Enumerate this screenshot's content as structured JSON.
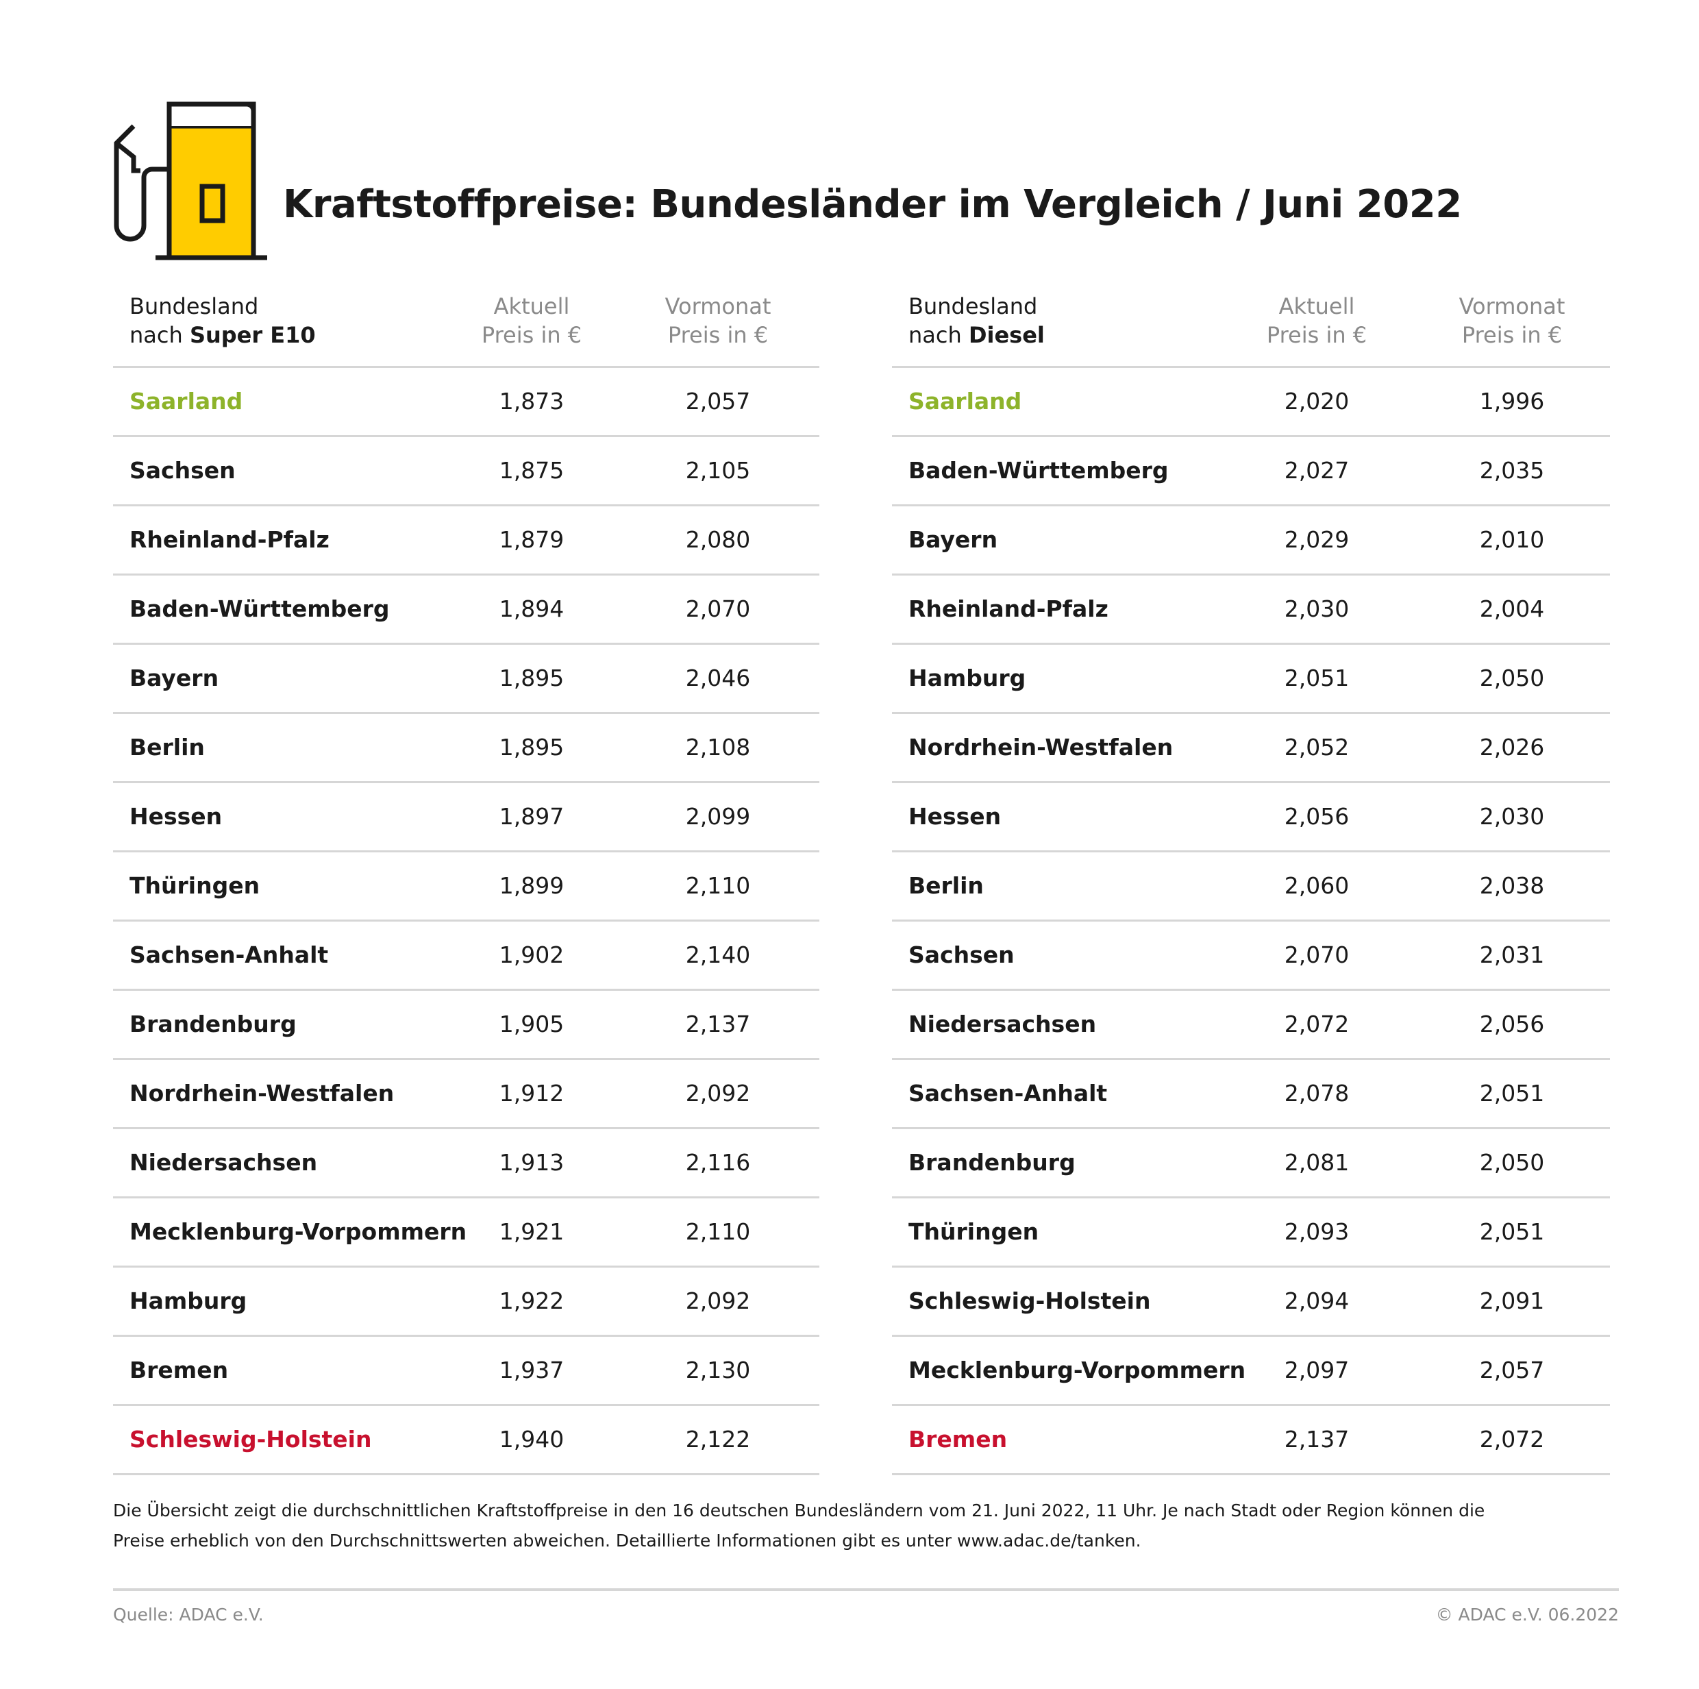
{
  "title": "Kraftstoffpreise: Bundesländer im Vergleich / Juni 2022",
  "colors": {
    "accent_yellow": "#ffcc00",
    "cheapest": "#8db32a",
    "most_expensive": "#c8102e"
  },
  "icon": "fuel-pump-icon",
  "tables": [
    {
      "header": {
        "col1_line1": "Bundesland",
        "col1_prefix": "nach ",
        "col1_fuel": "Super E10",
        "col2_line1": "Aktuell",
        "col2_line2": "Preis in €",
        "col3_line1": "Vormonat",
        "col3_line2": "Preis in €"
      },
      "rows": [
        {
          "name": "Saarland",
          "current": "1,873",
          "previous": "2,057"
        },
        {
          "name": "Sachsen",
          "current": "1,875",
          "previous": "2,105"
        },
        {
          "name": "Rheinland-Pfalz",
          "current": "1,879",
          "previous": "2,080"
        },
        {
          "name": "Baden-Württemberg",
          "current": "1,894",
          "previous": "2,070"
        },
        {
          "name": "Bayern",
          "current": "1,895",
          "previous": "2,046"
        },
        {
          "name": "Berlin",
          "current": "1,895",
          "previous": "2,108"
        },
        {
          "name": "Hessen",
          "current": "1,897",
          "previous": "2,099"
        },
        {
          "name": "Thüringen",
          "current": "1,899",
          "previous": "2,110"
        },
        {
          "name": "Sachsen-Anhalt",
          "current": "1,902",
          "previous": "2,140"
        },
        {
          "name": "Brandenburg",
          "current": "1,905",
          "previous": "2,137"
        },
        {
          "name": "Nordrhein-Westfalen",
          "current": "1,912",
          "previous": "2,092"
        },
        {
          "name": "Niedersachsen",
          "current": "1,913",
          "previous": "2,116"
        },
        {
          "name": "Mecklenburg-Vorpommern",
          "current": "1,921",
          "previous": "2,110"
        },
        {
          "name": "Hamburg",
          "current": "1,922",
          "previous": "2,092"
        },
        {
          "name": "Bremen",
          "current": "1,937",
          "previous": "2,130"
        },
        {
          "name": "Schleswig-Holstein",
          "current": "1,940",
          "previous": "2,122"
        }
      ]
    },
    {
      "header": {
        "col1_line1": "Bundesland",
        "col1_prefix": "nach ",
        "col1_fuel": "Diesel",
        "col2_line1": "Aktuell",
        "col2_line2": "Preis in €",
        "col3_line1": "Vormonat",
        "col3_line2": "Preis in €"
      },
      "rows": [
        {
          "name": "Saarland",
          "current": "2,020",
          "previous": "1,996"
        },
        {
          "name": "Baden-Württemberg",
          "current": "2,027",
          "previous": "2,035"
        },
        {
          "name": "Bayern",
          "current": "2,029",
          "previous": "2,010"
        },
        {
          "name": "Rheinland-Pfalz",
          "current": "2,030",
          "previous": "2,004"
        },
        {
          "name": "Hamburg",
          "current": "2,051",
          "previous": "2,050"
        },
        {
          "name": "Nordrhein-Westfalen",
          "current": "2,052",
          "previous": "2,026"
        },
        {
          "name": "Hessen",
          "current": "2,056",
          "previous": "2,030"
        },
        {
          "name": "Berlin",
          "current": "2,060",
          "previous": "2,038"
        },
        {
          "name": "Sachsen",
          "current": "2,070",
          "previous": "2,031"
        },
        {
          "name": "Niedersachsen",
          "current": "2,072",
          "previous": "2,056"
        },
        {
          "name": "Sachsen-Anhalt",
          "current": "2,078",
          "previous": "2,051"
        },
        {
          "name": "Brandenburg",
          "current": "2,081",
          "previous": "2,050"
        },
        {
          "name": "Thüringen",
          "current": "2,093",
          "previous": "2,051"
        },
        {
          "name": "Schleswig-Holstein",
          "current": "2,094",
          "previous": "2,091"
        },
        {
          "name": "Mecklenburg-Vorpommern",
          "current": "2,097",
          "previous": "2,057"
        },
        {
          "name": "Bremen",
          "current": "2,137",
          "previous": "2,072"
        }
      ]
    }
  ],
  "note_line1": "Die Übersicht zeigt die durchschnittlichen Kraftstoffpreise in den 16 deutschen Bundesländern vom 21. Juni 2022, 11 Uhr. Je nach Stadt oder Region können die",
  "note_line2": "Preise erheblich von den Durchschnittswerten abweichen. Detaillierte Informationen gibt es unter www.adac.de/tanken.",
  "source": "Quelle: ADAC e.V.",
  "copyright": "© ADAC e.V. 06.2022"
}
